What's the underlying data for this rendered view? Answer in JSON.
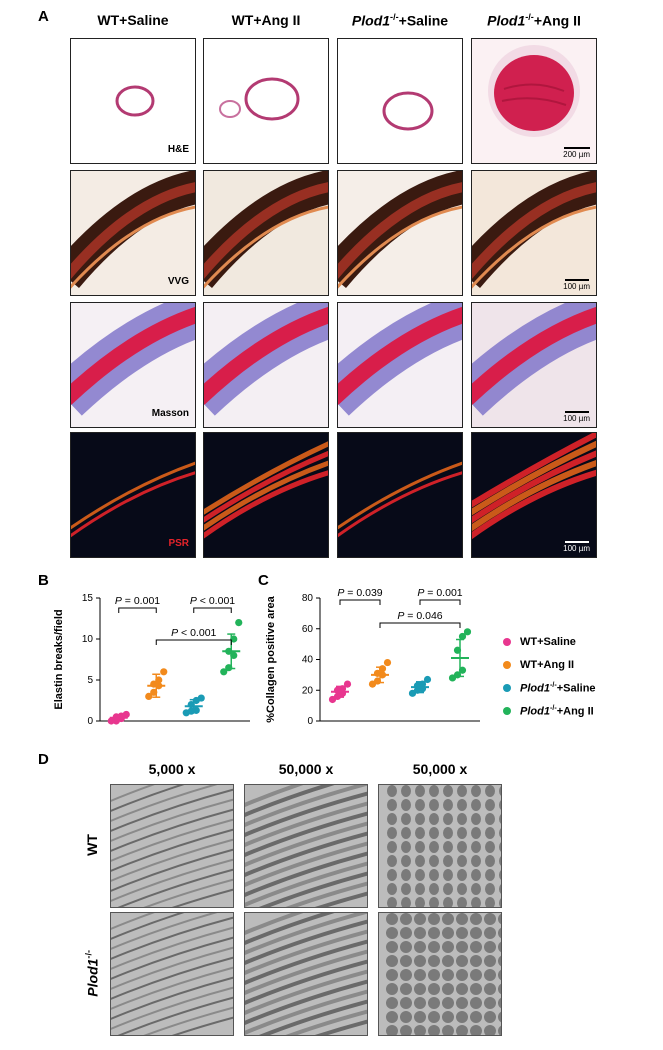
{
  "panel_a": {
    "letter": "A",
    "columns": [
      {
        "prefix": "WT",
        "sup": "",
        "suffix": "+Saline"
      },
      {
        "prefix": "WT",
        "sup": "",
        "suffix": "+Ang II"
      },
      {
        "prefix": "Plod1",
        "sup": "-/-",
        "suffix": "+Saline"
      },
      {
        "prefix": "Plod1",
        "sup": "-/-",
        "suffix": "+Ang II"
      }
    ],
    "stains": [
      "H&E",
      "VVG",
      "Masson",
      "PSR"
    ],
    "scalebars": [
      "200 µm",
      "100 µm",
      "100 µm",
      "100 µm"
    ]
  },
  "panel_b": {
    "letter": "B"
  },
  "panel_c": {
    "letter": "C"
  },
  "legend": [
    {
      "prefix": "WT",
      "sup": "",
      "suffix": "+Saline",
      "color": "#e8368f"
    },
    {
      "prefix": "WT",
      "sup": "",
      "suffix": "+Ang II",
      "color": "#f28a1c"
    },
    {
      "prefix": "Plod1",
      "sup": "-/-",
      "suffix": "+Saline",
      "color": "#1a9bb5"
    },
    {
      "prefix": "Plod1",
      "sup": "-/-",
      "suffix": "+Ang II",
      "color": "#22b35a"
    }
  ],
  "chart_data": [
    {
      "type": "scatter",
      "ylabel": "Elastin breaks/field",
      "ylim": [
        0,
        15
      ],
      "yticks": [
        0,
        5,
        10,
        15
      ],
      "groups": [
        {
          "name": "WT+Saline",
          "color": "#e8368f",
          "points": [
            0,
            0,
            0.3,
            0.5,
            0.6,
            0.8
          ],
          "mean": 0.4,
          "sd": 0.35
        },
        {
          "name": "WT+Ang II",
          "color": "#f28a1c",
          "points": [
            3.0,
            3.5,
            4.3,
            4.5,
            5.0,
            6.0
          ],
          "mean": 4.3,
          "sd": 1.4
        },
        {
          "name": "Plod1-/-+Saline",
          "color": "#1a9bb5",
          "points": [
            1.0,
            1.2,
            1.3,
            2.0,
            2.5,
            2.8
          ],
          "mean": 1.8,
          "sd": 0.8
        },
        {
          "name": "Plod1-/-+Ang II",
          "color": "#22b35a",
          "points": [
            6.0,
            6.5,
            8.0,
            8.5,
            10.0,
            12.0
          ],
          "mean": 8.5,
          "sd": 2.1
        }
      ],
      "annotations": [
        {
          "text": "P = 0.001",
          "from": 0,
          "to": 1
        },
        {
          "text": "P < 0.001",
          "from": 2,
          "to": 3
        },
        {
          "text": "P < 0.001",
          "from": 1,
          "to": 3
        }
      ]
    },
    {
      "type": "scatter",
      "ylabel": "%Collagen positive area",
      "ylim": [
        0,
        80
      ],
      "yticks": [
        0,
        20,
        40,
        60,
        80
      ],
      "groups": [
        {
          "name": "WT+Saline",
          "color": "#e8368f",
          "points": [
            14,
            16,
            18,
            20,
            21,
            24
          ],
          "mean": 19,
          "sd": 3.5
        },
        {
          "name": "WT+Ang II",
          "color": "#f28a1c",
          "points": [
            24,
            26,
            30,
            31,
            34,
            38
          ],
          "mean": 30,
          "sd": 5
        },
        {
          "name": "Plod1-/-+Saline",
          "color": "#1a9bb5",
          "points": [
            18,
            20,
            21,
            23,
            24,
            27
          ],
          "mean": 22,
          "sd": 3.5
        },
        {
          "name": "Plod1-/-+Ang II",
          "color": "#22b35a",
          "points": [
            28,
            30,
            33,
            46,
            55,
            58
          ],
          "mean": 41,
          "sd": 12
        }
      ],
      "annotations": [
        {
          "text": "P = 0.039",
          "from": 0,
          "to": 1
        },
        {
          "text": "P = 0.001",
          "from": 2,
          "to": 3
        },
        {
          "text": "P = 0.046",
          "from": 1,
          "to": 3
        }
      ]
    }
  ],
  "panel_d": {
    "letter": "D",
    "columns": [
      "5,000 x",
      "50,000 x",
      "50,000 x"
    ],
    "rows": [
      {
        "prefix": "WT",
        "sup": ""
      },
      {
        "prefix": "Plod1",
        "sup": "-/-"
      }
    ]
  }
}
